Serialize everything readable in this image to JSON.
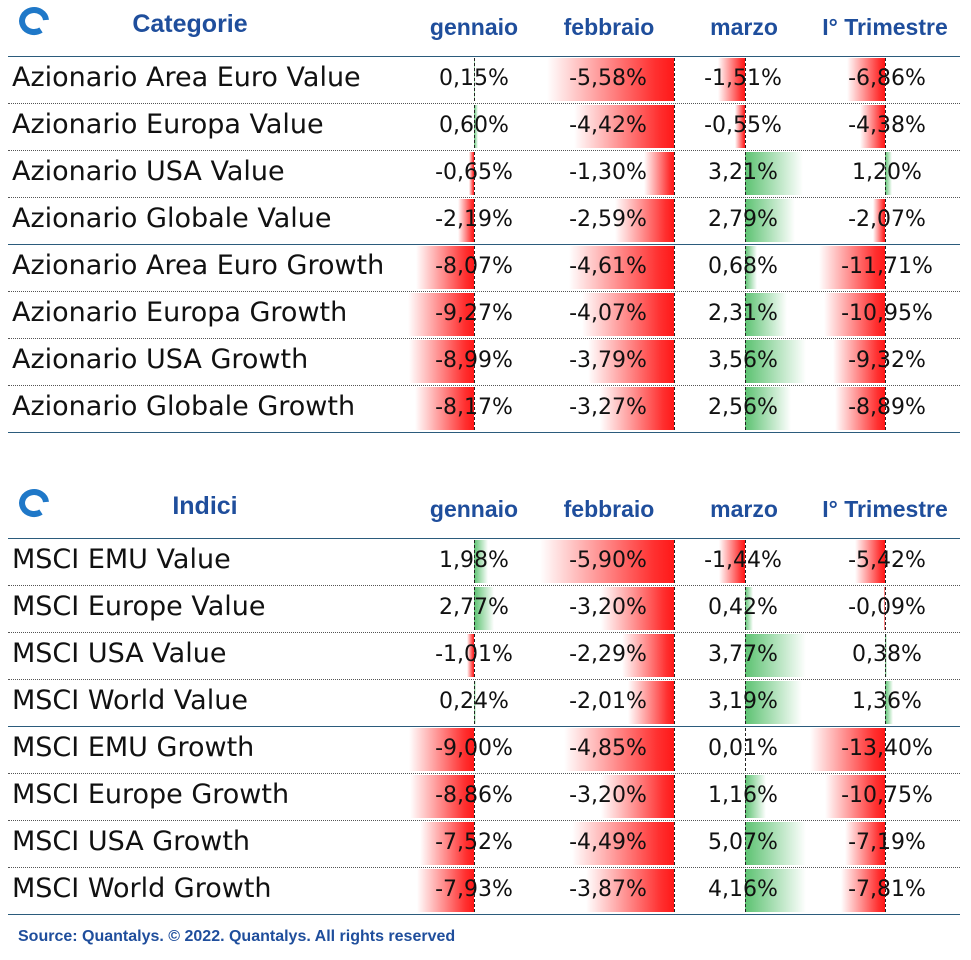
{
  "columns": [
    "gennaio",
    "febbraio",
    "marzo",
    "I° Trimestre"
  ],
  "sections": [
    {
      "title": "Categorie",
      "rows": [
        {
          "label": "Azionario Area Euro Value",
          "values": [
            "0,15%",
            "-5,58%",
            "-1,51%",
            "-6,86%"
          ]
        },
        {
          "label": "Azionario Europa Value",
          "values": [
            "0,60%",
            "-4,42%",
            "-0,55%",
            "-4,38%"
          ]
        },
        {
          "label": "Azionario USA Value",
          "values": [
            "-0,65%",
            "-1,30%",
            "3,21%",
            "1,20%"
          ]
        },
        {
          "label": "Azionario Globale Value",
          "values": [
            "-2,19%",
            "-2,59%",
            "2,79%",
            "-2,07%"
          ]
        },
        {
          "label": "Azionario Area Euro Growth",
          "values": [
            "-8,07%",
            "-4,61%",
            "0,68%",
            "-11,71%"
          ]
        },
        {
          "label": "Azionario Europa Growth",
          "values": [
            "-9,27%",
            "-4,07%",
            "2,31%",
            "-10,95%"
          ]
        },
        {
          "label": "Azionario USA Growth",
          "values": [
            "-8,99%",
            "-3,79%",
            "3,56%",
            "-9,32%"
          ]
        },
        {
          "label": "Azionario Globale Growth",
          "values": [
            "-8,17%",
            "-3,27%",
            "2,56%",
            "-8,89%"
          ]
        }
      ]
    },
    {
      "title": "Indici",
      "rows": [
        {
          "label": "MSCI EMU Value",
          "values": [
            "1,98%",
            "-5,90%",
            "-1,44%",
            "-5,42%"
          ]
        },
        {
          "label": "MSCI Europe Value",
          "values": [
            "2,77%",
            "-3,20%",
            "0,42%",
            "-0,09%"
          ]
        },
        {
          "label": "MSCI USA Value",
          "values": [
            "-1,01%",
            "-2,29%",
            "3,77%",
            "0,38%"
          ]
        },
        {
          "label": "MSCI World Value",
          "values": [
            "0,24%",
            "-2,01%",
            "3,19%",
            "1,36%"
          ]
        },
        {
          "label": "MSCI EMU Growth",
          "values": [
            "-9,00%",
            "-4,85%",
            "0,01%",
            "-13,40%"
          ]
        },
        {
          "label": "MSCI Europe Growth",
          "values": [
            "-8,86%",
            "-3,20%",
            "1,16%",
            "-10,75%"
          ]
        },
        {
          "label": "MSCI USA Growth",
          "values": [
            "-7,52%",
            "-4,49%",
            "5,07%",
            "-7,19%"
          ]
        },
        {
          "label": "MSCI World Growth",
          "values": [
            "-7,93%",
            "-3,87%",
            "4,16%",
            "-7,81%"
          ]
        }
      ]
    }
  ],
  "chart_data": {
    "type": "table",
    "categories": [
      "gennaio",
      "febbraio",
      "marzo",
      "I° Trimestre"
    ],
    "tables": [
      {
        "title": "Categorie",
        "rows": [
          "Azionario Area Euro Value",
          "Azionario Europa Value",
          "Azionario USA Value",
          "Azionario Globale Value",
          "Azionario Area Euro Growth",
          "Azionario Europa Growth",
          "Azionario USA Growth",
          "Azionario Globale Growth"
        ],
        "values": [
          [
            0.15,
            -5.58,
            -1.51,
            -6.86
          ],
          [
            0.6,
            -4.42,
            -0.55,
            -4.38
          ],
          [
            -0.65,
            -1.3,
            3.21,
            1.2
          ],
          [
            -2.19,
            -2.59,
            2.79,
            -2.07
          ],
          [
            -8.07,
            -4.61,
            0.68,
            -11.71
          ],
          [
            -9.27,
            -4.07,
            2.31,
            -10.95
          ],
          [
            -8.99,
            -3.79,
            3.56,
            -9.32
          ],
          [
            -8.17,
            -3.27,
            2.56,
            -8.89
          ]
        ]
      },
      {
        "title": "Indici",
        "rows": [
          "MSCI EMU Value",
          "MSCI Europe Value",
          "MSCI USA Value",
          "MSCI World Value",
          "MSCI EMU Growth",
          "MSCI Europe Growth",
          "MSCI USA Growth",
          "MSCI World Growth"
        ],
        "values": [
          [
            1.98,
            -5.9,
            -1.44,
            -5.42
          ],
          [
            2.77,
            -3.2,
            0.42,
            -0.09
          ],
          [
            -1.01,
            -2.29,
            3.77,
            0.38
          ],
          [
            0.24,
            -2.01,
            3.19,
            1.36
          ],
          [
            -9.0,
            -4.85,
            0.01,
            -13.4
          ],
          [
            -8.86,
            -3.2,
            1.16,
            -10.75
          ],
          [
            -7.52,
            -4.49,
            5.07,
            -7.19
          ],
          [
            -7.93,
            -3.87,
            4.16,
            -7.81
          ]
        ]
      }
    ]
  },
  "footer": "Source: Quantalys. © 2022. Quantalys. All rights reserved",
  "colors": {
    "header": "#1f4e9c",
    "negative": "#ff2020",
    "positive": "#5cc271",
    "divider": "#2b5b7c"
  }
}
